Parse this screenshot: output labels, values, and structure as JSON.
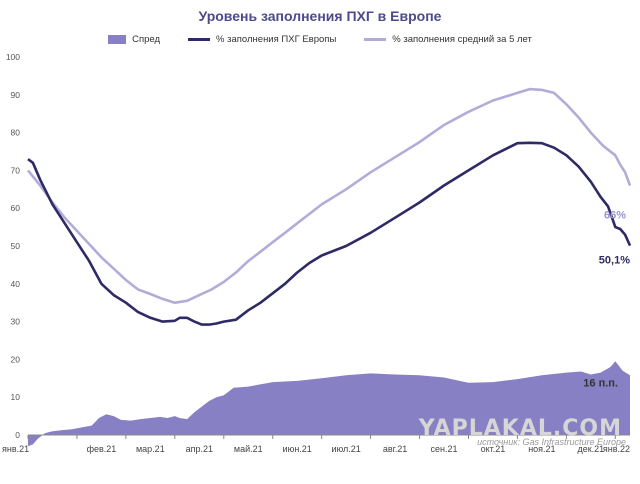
{
  "chart_data": {
    "type": "line",
    "title": "Уровень заполнения ПХГ в Европе",
    "ylim": [
      0,
      100
    ],
    "y_ticks": [
      "0",
      "10",
      "20",
      "30",
      "40",
      "50",
      "60",
      "70",
      "80",
      "90",
      "100"
    ],
    "x_ticks": [
      "янв.21",
      "фев.21",
      "мар.21",
      "апр.21",
      "май.21",
      "июн.21",
      "июл.21",
      "авг.21",
      "сен.21",
      "окт.21",
      "ноя.21",
      "дек.21",
      "янв.22"
    ],
    "x_tick_positions": [
      0,
      1,
      2,
      3,
      4,
      5,
      6,
      7,
      8,
      9,
      10,
      11,
      12
    ],
    "grid": false,
    "legend_placement": "top",
    "series": [
      {
        "name": "Спред",
        "kind": "area",
        "color": "#8780c4",
        "x": [
          0,
          0.1,
          0.2,
          0.35,
          0.5,
          0.7,
          0.9,
          1.1,
          1.3,
          1.45,
          1.6,
          1.75,
          1.9,
          2.1,
          2.3,
          2.5,
          2.7,
          2.85,
          3.0,
          3.1,
          3.25,
          3.4,
          3.55,
          3.7,
          3.85,
          4.0,
          4.2,
          4.5,
          5.0,
          5.5,
          6.0,
          6.5,
          7.0,
          7.5,
          8.0,
          8.5,
          9.0,
          9.5,
          10.0,
          10.5,
          11.0,
          11.3,
          11.5,
          11.7,
          11.9,
          12.0,
          12.15,
          12.3
        ],
        "y": [
          -3,
          -2.5,
          -1,
          0.5,
          1,
          1.3,
          1.5,
          2,
          2.5,
          4.5,
          5.5,
          5,
          4,
          3.8,
          4.2,
          4.5,
          4.8,
          4.5,
          5,
          4.5,
          4.2,
          6,
          7.5,
          9,
          10,
          10.5,
          12.5,
          12.8,
          14,
          14.3,
          15,
          15.8,
          16.3,
          16,
          15.8,
          15.2,
          13.8,
          14,
          14.8,
          15.8,
          16.5,
          16.8,
          16,
          16.5,
          18,
          19.5,
          17,
          15.8
        ]
      },
      {
        "name": "% заполнения ПХГ Европы",
        "kind": "line",
        "color": "#2e2a66",
        "x": [
          0,
          0.1,
          0.25,
          0.5,
          0.75,
          1.0,
          1.25,
          1.5,
          1.75,
          2.0,
          2.25,
          2.5,
          2.75,
          3.0,
          3.1,
          3.25,
          3.4,
          3.55,
          3.7,
          3.85,
          4.0,
          4.25,
          4.5,
          4.75,
          5.0,
          5.25,
          5.5,
          5.75,
          6.0,
          6.5,
          7.0,
          7.5,
          8.0,
          8.5,
          9.0,
          9.5,
          10.0,
          10.25,
          10.5,
          10.75,
          11.0,
          11.25,
          11.5,
          11.7,
          11.85,
          11.92,
          12.0,
          12.1,
          12.2,
          12.3
        ],
        "y": [
          73,
          72,
          67.5,
          61,
          56,
          51,
          46,
          40,
          37,
          35,
          32.5,
          31,
          30,
          30.2,
          31,
          31,
          30,
          29.2,
          29.2,
          29.5,
          30,
          30.5,
          33,
          35,
          37.5,
          40,
          43,
          45.5,
          47.5,
          50,
          53.5,
          57.5,
          61.5,
          66,
          70,
          74,
          77.2,
          77.3,
          77.2,
          76,
          74,
          71,
          67,
          63,
          60.5,
          58,
          55,
          54.5,
          53,
          50.1
        ]
      },
      {
        "name": "% заполнения средний за 5 лет",
        "kind": "line",
        "color": "#b3acd9",
        "x": [
          0,
          0.25,
          0.5,
          0.75,
          1.0,
          1.25,
          1.5,
          1.75,
          2.0,
          2.25,
          2.5,
          2.75,
          3.0,
          3.25,
          3.5,
          3.75,
          4.0,
          4.25,
          4.5,
          4.75,
          5.0,
          5.25,
          5.5,
          5.75,
          6.0,
          6.5,
          7.0,
          7.5,
          8.0,
          8.5,
          9.0,
          9.5,
          10.0,
          10.25,
          10.5,
          10.75,
          11.0,
          11.25,
          11.5,
          11.75,
          12.0,
          12.1,
          12.2,
          12.3
        ],
        "y": [
          70,
          66,
          61.5,
          57.5,
          54,
          50.5,
          47,
          44,
          41,
          38.5,
          37.3,
          36,
          35,
          35.5,
          37,
          38.5,
          40.5,
          43,
          46,
          48.5,
          51,
          53.5,
          56,
          58.5,
          61,
          65,
          69.5,
          73.5,
          77.5,
          82,
          85.5,
          88.5,
          90.5,
          91.5,
          91.3,
          90.5,
          87.5,
          84,
          80,
          76.5,
          74,
          71.5,
          69.5,
          66
        ]
      }
    ],
    "annotations": [
      {
        "text": "66%",
        "color": "#9a94cf"
      },
      {
        "text": "50,1%",
        "color": "#2e2a66"
      },
      {
        "text": "16 п.п.",
        "color": "#333333"
      }
    ]
  },
  "watermark": "YAPLAKAL.COM",
  "source": "источник: Gas Infrastructure Europe"
}
